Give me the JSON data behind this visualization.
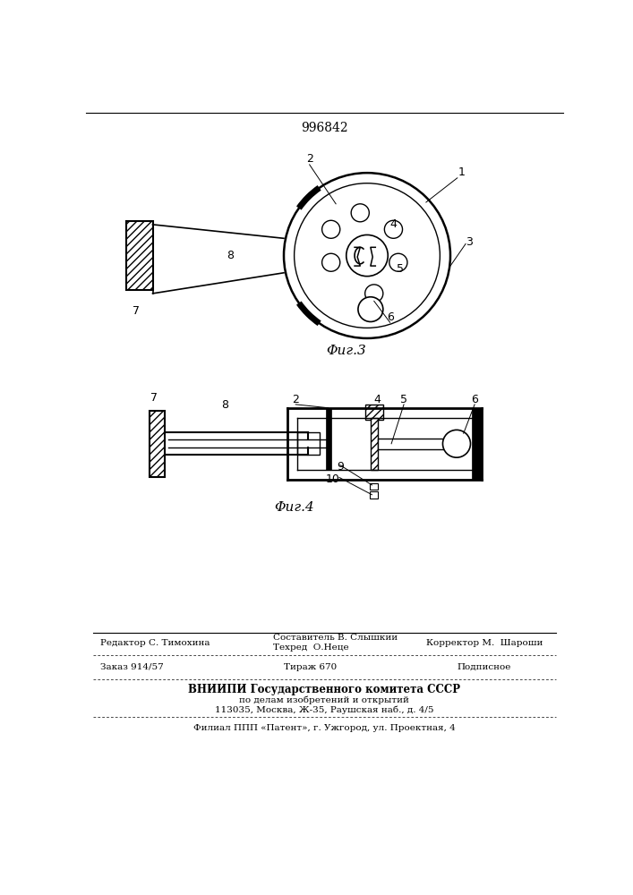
{
  "patent_number": "996842",
  "background_color": "#ffffff",
  "fig3_caption": "Φиг.3",
  "fig4_caption": "Φиг.4",
  "footer": {
    "editor_line": "Редактор С. Тимохина",
    "composer_line1": "Составитель В. Слышкии",
    "composer_line2": "Техред  О.Неце",
    "corrector_line": "Корректор М.  Шароши",
    "order_line": "Заказ 914/57",
    "tirage_line": "Тираж 670",
    "podpisnoe_line": "Подписное",
    "vniiipi_line1": "ВНИИПИ Государственного комитета СССР",
    "vniiipi_line2": "по делам изобретений и открытий",
    "vniiipi_line3": "113035, Москва, Ж-35, Раушская наб., д. 4/5",
    "filial_line": "Филиал ППП «Патент», г. Ужгород, ул. Проектная, 4"
  }
}
